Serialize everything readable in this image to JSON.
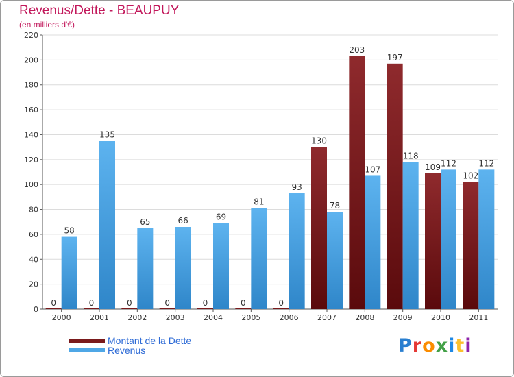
{
  "title": "Revenus/Dette - BEAUPUY",
  "subtitle": "(en milliers d'€)",
  "legend": {
    "debt_label": "Montant de la Dette",
    "revenue_label": "Revenus"
  },
  "logo_text": "Proxiti",
  "colors": {
    "debt": "#7a1a1c",
    "revenue": "#4fa7e6",
    "title": "#c2185b",
    "legend_text": "#2e6bd6"
  },
  "chart_data": {
    "type": "bar",
    "title": "Revenus/Dette - BEAUPUY",
    "subtitle": "(en milliers d'€)",
    "categories": [
      "2000",
      "2001",
      "2002",
      "2003",
      "2004",
      "2005",
      "2006",
      "2007",
      "2008",
      "2009",
      "2010",
      "2011"
    ],
    "series": [
      {
        "name": "Montant de la Dette",
        "color": "#7a1a1c",
        "values": [
          0,
          0,
          0,
          0,
          0,
          0,
          0,
          130,
          203,
          197,
          109,
          102
        ]
      },
      {
        "name": "Revenus",
        "color": "#4fa7e6",
        "values": [
          58,
          135,
          65,
          66,
          69,
          81,
          93,
          78,
          107,
          118,
          112,
          112
        ]
      }
    ],
    "ylim": [
      0,
      220
    ],
    "yticks": [
      0,
      20,
      40,
      60,
      80,
      100,
      120,
      140,
      160,
      180,
      200,
      220
    ],
    "grid": true,
    "legend_position": "bottom-left"
  }
}
